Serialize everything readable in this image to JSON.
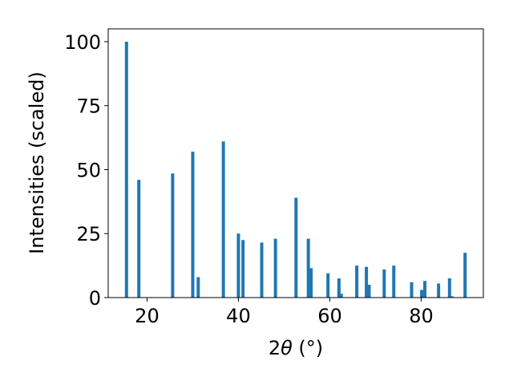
{
  "chart_data": {
    "type": "bar",
    "title": "",
    "xlabel": {
      "prefix": "2",
      "symbol": "θ",
      "suffix": " (°)"
    },
    "ylabel": "Intensities (scaled)",
    "xlim": [
      11.5,
      93.6
    ],
    "ylim": [
      0,
      105
    ],
    "xticks": [
      {
        "value": 20,
        "label": "20"
      },
      {
        "value": 40,
        "label": "40"
      },
      {
        "value": 60,
        "label": "60"
      },
      {
        "value": 80,
        "label": "80"
      }
    ],
    "yticks": [
      {
        "value": 0,
        "label": "0"
      },
      {
        "value": 25,
        "label": "25"
      },
      {
        "value": 50,
        "label": "50"
      },
      {
        "value": 75,
        "label": "75"
      },
      {
        "value": 100,
        "label": "100"
      }
    ],
    "bar_width": 0.7,
    "color": "#1f77b4",
    "grid": false,
    "series": [
      {
        "x": [
          15.5,
          18.2,
          25.6,
          30.0,
          31.2,
          36.7,
          40.0,
          41.0,
          45.1,
          48.1,
          52.6,
          55.3,
          55.9,
          59.6,
          62.0,
          62.5,
          65.9,
          68.0,
          68.6,
          71.9,
          74.0,
          77.9,
          80.1,
          80.8,
          83.8,
          86.2,
          86.7,
          89.6
        ],
        "y": [
          100,
          46,
          48.5,
          57,
          8,
          61,
          25,
          22.5,
          21.5,
          23,
          39,
          23,
          11.5,
          9.5,
          7.5,
          1.5,
          12.5,
          12,
          5,
          11,
          12.5,
          6,
          3,
          6.5,
          5.5,
          7.5,
          0.5,
          17.5
        ]
      }
    ]
  }
}
